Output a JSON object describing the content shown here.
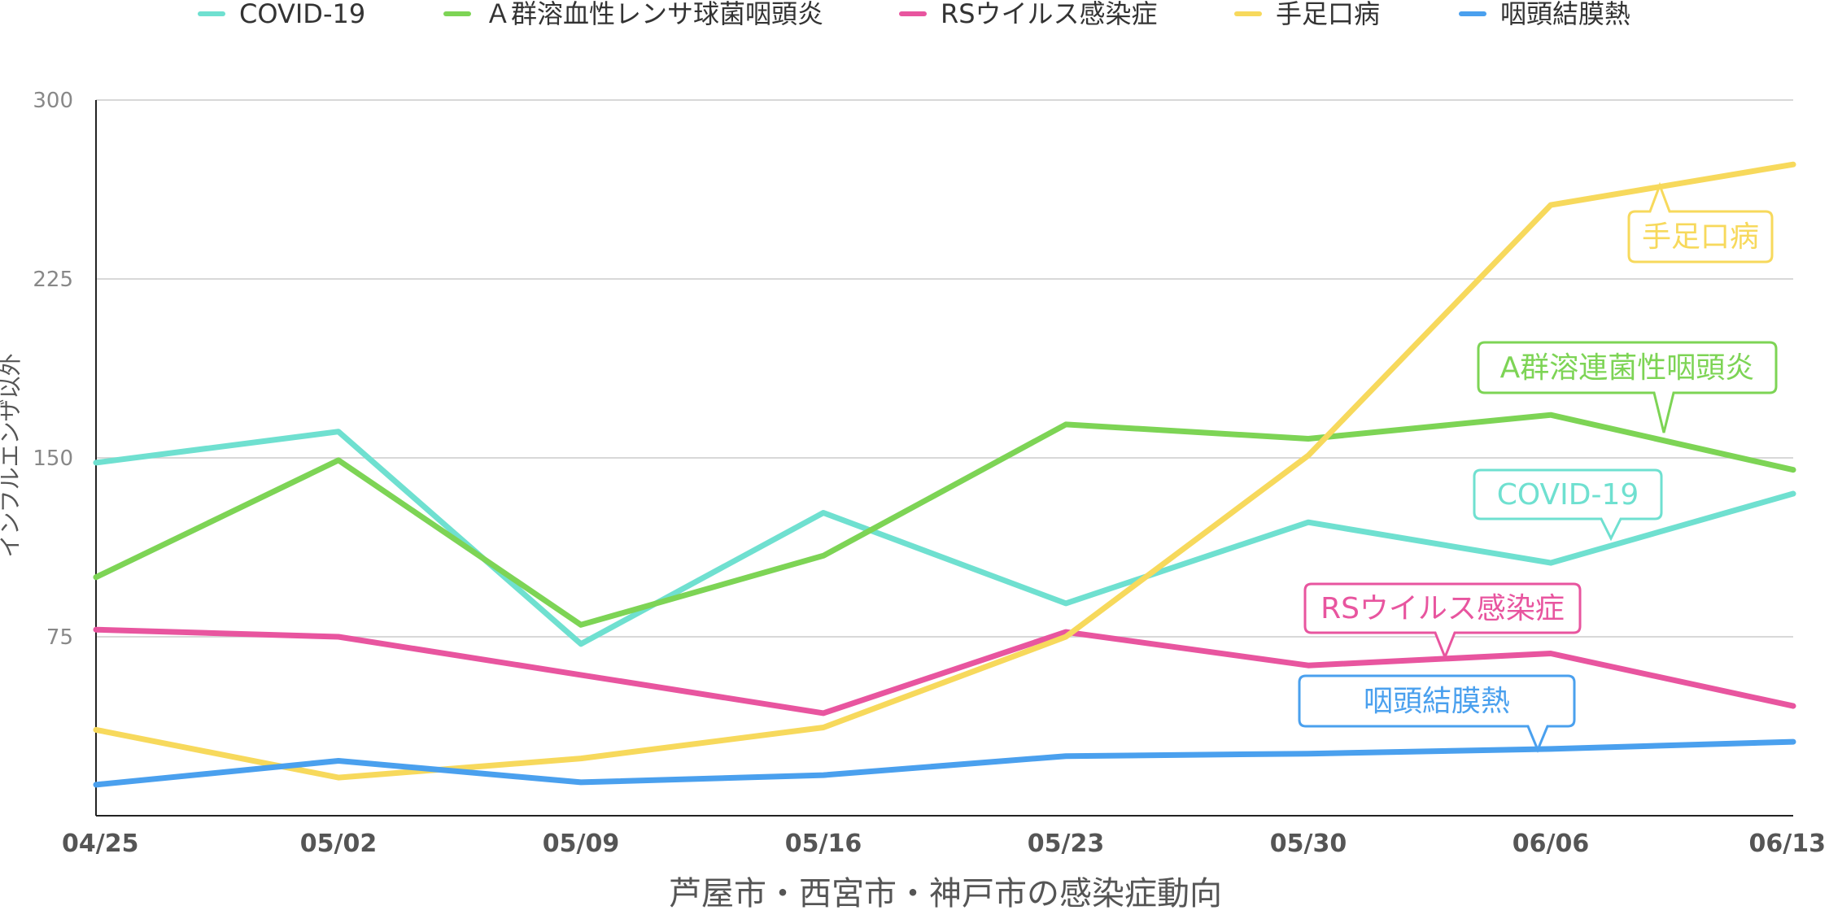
{
  "chart_data": {
    "type": "line",
    "title": "",
    "xlabel": "芦屋市・西宮市・神戸市の感染症動向",
    "ylabel": "インフルエンザ以外",
    "x": [
      "04/25",
      "05/02",
      "05/09",
      "05/16",
      "05/23",
      "05/30",
      "06/06",
      "06/13"
    ],
    "yticks": [
      "75",
      "150",
      "225",
      "300"
    ],
    "ylim": [
      0,
      300
    ],
    "grid": true,
    "legend_position": "top",
    "series": [
      {
        "name": "COVID-19",
        "color": "#6fe0d0",
        "values": [
          148,
          161,
          72,
          127,
          89,
          123,
          106,
          135
        ]
      },
      {
        "name": "Ａ群溶血性レンサ球菌咽頭炎",
        "color": "#7dd455",
        "values": [
          100,
          149,
          80,
          109,
          164,
          158,
          168,
          145
        ]
      },
      {
        "name": "RSウイルス感染症",
        "color": "#e8559f",
        "values": [
          78,
          75,
          59,
          43,
          77,
          63,
          68,
          46
        ]
      },
      {
        "name": "手足口病",
        "color": "#f7d95c",
        "values": [
          36,
          16,
          24,
          37,
          75,
          151,
          256,
          273
        ]
      },
      {
        "name": "咽頭結膜熱",
        "color": "#4aa0ee",
        "values": [
          13,
          23,
          14,
          17,
          25,
          26,
          28,
          31
        ]
      }
    ],
    "annotations": [
      {
        "text": "手足口病",
        "series": 3,
        "color": "#f7d95c"
      },
      {
        "text": "A群溶連菌性咽頭炎",
        "series": 1,
        "color": "#7dd455"
      },
      {
        "text": "COVID-19",
        "series": 0,
        "color": "#6fe0d0"
      },
      {
        "text": "RSウイルス感染症",
        "series": 2,
        "color": "#e8559f"
      },
      {
        "text": "咽頭結膜熱",
        "series": 4,
        "color": "#4aa0ee"
      }
    ]
  }
}
